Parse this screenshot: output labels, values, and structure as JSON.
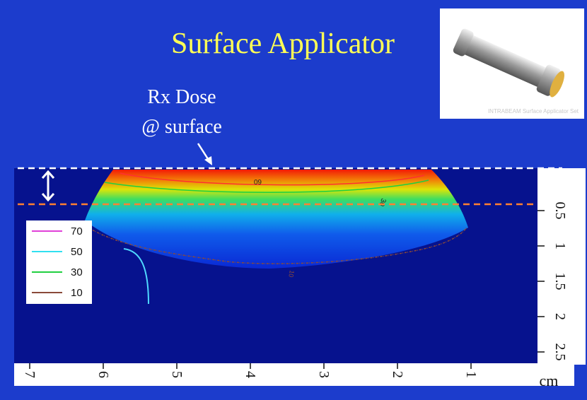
{
  "title": "Surface Applicator",
  "photo": {
    "caption": "INTRABEAM Surface Applicator Set"
  },
  "annotation": {
    "line1": "Rx Dose",
    "line2": "@ surface"
  },
  "legend": [
    {
      "label": "70",
      "color": "#e040d8"
    },
    {
      "label": "50",
      "color": "#30e0f0"
    },
    {
      "label": "30",
      "color": "#20d040"
    },
    {
      "label": "10",
      "color": "#8a4a3a"
    }
  ],
  "contour_labels": [
    "60",
    "30",
    "10"
  ],
  "depth_axis": {
    "ticks": [
      0.5,
      1,
      1.5,
      2,
      2.5
    ]
  },
  "width_axis": {
    "ticks": [
      7,
      6,
      5,
      4,
      3,
      2,
      1
    ],
    "unit": "cm"
  }
}
